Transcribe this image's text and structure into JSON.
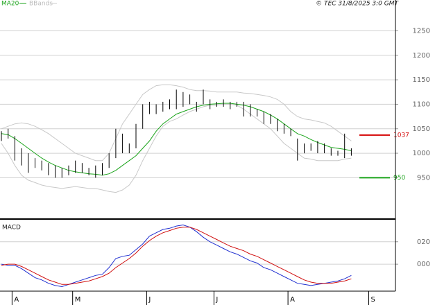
{
  "chart_data": {
    "type": "ohlc",
    "source": "© TEC 31/8/2025 3:0 GMT",
    "categories": [
      null,
      null,
      "A",
      null,
      null,
      null,
      null,
      null,
      null,
      null,
      null,
      "M",
      null,
      null,
      null,
      null,
      null,
      null,
      null,
      null,
      null,
      null,
      "J",
      null,
      null,
      null,
      null,
      null,
      null,
      null,
      null,
      null,
      "J",
      null,
      null,
      null,
      null,
      null,
      null,
      null,
      null,
      null,
      null,
      "A",
      null,
      null,
      null,
      null,
      null,
      null,
      null,
      null,
      null,
      null,
      null,
      "S"
    ],
    "high": [
      1045,
      1050,
      1035,
      1010,
      1000,
      990,
      985,
      980,
      975,
      970,
      975,
      985,
      980,
      970,
      975,
      980,
      1000,
      1050,
      1040,
      1020,
      1060,
      1100,
      1105,
      1100,
      1105,
      1110,
      1130,
      1125,
      1120,
      1105,
      1130,
      1110,
      1105,
      1110,
      1105,
      1105,
      1105,
      1100,
      1090,
      1085,
      1080,
      1070,
      1060,
      1050,
      1030,
      1020,
      1020,
      1025,
      1020,
      1010,
      1005,
      1040,
      1010,
      null,
      null,
      null
    ],
    "low": [
      1025,
      1030,
      985,
      975,
      960,
      970,
      965,
      955,
      950,
      950,
      955,
      960,
      960,
      955,
      950,
      955,
      970,
      990,
      1000,
      1000,
      1010,
      1050,
      1080,
      1080,
      1085,
      1090,
      1090,
      1095,
      1100,
      1085,
      1100,
      1090,
      1095,
      1095,
      1090,
      1095,
      1075,
      1075,
      1075,
      1060,
      1060,
      1045,
      1040,
      1035,
      985,
      1000,
      1005,
      1000,
      1000,
      995,
      995,
      990,
      995,
      null,
      null,
      null
    ],
    "bar_color": "#000000",
    "ma": {
      "name": "MA20",
      "color": "#1aa31a",
      "values": [
        1040,
        1038,
        1030,
        1020,
        1010,
        1000,
        990,
        982,
        975,
        970,
        965,
        962,
        960,
        958,
        957,
        955,
        958,
        965,
        975,
        985,
        995,
        1010,
        1025,
        1045,
        1060,
        1070,
        1080,
        1085,
        1090,
        1095,
        1098,
        1100,
        1101,
        1102,
        1102,
        1100,
        1098,
        1095,
        1090,
        1085,
        1078,
        1070,
        1060,
        1050,
        1040,
        1035,
        1028,
        1022,
        1017,
        1012,
        1010,
        1008,
        1005,
        null,
        null,
        null
      ]
    },
    "bbands": {
      "name": "BBands",
      "color": "#c8c8c8",
      "upper": [
        1050,
        1055,
        1060,
        1062,
        1060,
        1055,
        1048,
        1040,
        1030,
        1020,
        1010,
        1000,
        995,
        990,
        985,
        985,
        1000,
        1030,
        1060,
        1080,
        1100,
        1120,
        1130,
        1138,
        1140,
        1140,
        1138,
        1135,
        1130,
        1128,
        1128,
        1127,
        1125,
        1125,
        1125,
        1125,
        1123,
        1122,
        1120,
        1118,
        1115,
        1110,
        1100,
        1085,
        1075,
        1070,
        1068,
        1065,
        1062,
        1055,
        1045,
        1035,
        1025,
        null,
        null,
        null
      ],
      "lower": [
        1020,
        1000,
        975,
        955,
        945,
        940,
        935,
        932,
        930,
        928,
        930,
        932,
        930,
        928,
        928,
        925,
        922,
        920,
        925,
        935,
        955,
        985,
        1010,
        1035,
        1055,
        1065,
        1070,
        1078,
        1085,
        1090,
        1095,
        1098,
        1098,
        1100,
        1100,
        1098,
        1090,
        1080,
        1070,
        1060,
        1050,
        1035,
        1020,
        1010,
        1000,
        990,
        988,
        985,
        985,
        985,
        985,
        988,
        990,
        null,
        null,
        null
      ]
    },
    "levels": [
      {
        "value": 1037,
        "color": "#d40000"
      },
      {
        "value": 950,
        "color": "#1aa31a"
      }
    ],
    "ylim": [
      867,
      1313
    ],
    "yticks": [
      950,
      1000,
      1050,
      1100,
      1150,
      1200,
      1250
    ],
    "grid": true,
    "macd": {
      "title": "MACD",
      "series": [
        {
          "color": "#1f2fd0",
          "values": [
            0,
            -1,
            -1,
            -4,
            -8,
            -12,
            -14,
            -17,
            -19,
            -20,
            -18,
            -16,
            -14,
            -12,
            -10,
            -9,
            -3,
            5,
            7,
            8,
            13,
            18,
            25,
            28,
            31,
            32,
            34,
            35,
            33,
            29,
            24,
            20,
            17,
            14,
            11,
            9,
            6,
            3,
            1,
            -3,
            -5,
            -8,
            -11,
            -14,
            -17,
            -18,
            -19,
            -18,
            -17,
            -16,
            -15,
            -13,
            -10,
            null,
            null,
            null
          ]
        },
        {
          "color": "#d01010",
          "values": [
            -1,
            0,
            0,
            -2,
            -5,
            -8,
            -11,
            -14,
            -16,
            -18,
            -18,
            -17,
            -16,
            -15,
            -13,
            -11,
            -8,
            -3,
            1,
            5,
            10,
            16,
            21,
            25,
            28,
            30,
            32,
            33,
            33,
            31,
            28,
            25,
            22,
            19,
            16,
            14,
            12,
            9,
            7,
            4,
            1,
            -2,
            -5,
            -8,
            -11,
            -14,
            -16,
            -17,
            -17,
            -17,
            -16,
            -15,
            -13,
            null,
            null,
            null
          ]
        }
      ],
      "ylim": [
        -24,
        39
      ],
      "yticks": [
        {
          "value": 20,
          "label": "020"
        },
        {
          "value": 0,
          "label": "000"
        }
      ]
    }
  }
}
